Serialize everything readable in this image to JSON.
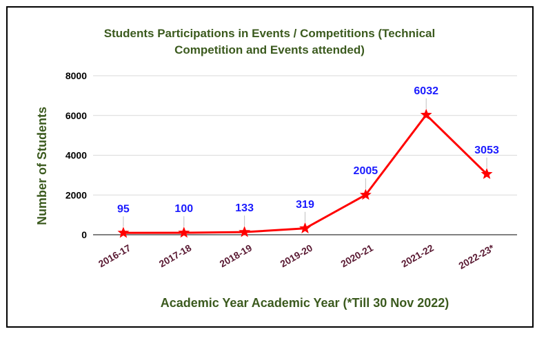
{
  "colors": {
    "title": "#3b5a1e",
    "axis_label": "#3b5a1e",
    "x_tick": "#5a1a33",
    "series": "#ff0000",
    "data_label": "#1a1aff",
    "grid": "#d9d9d9",
    "frame": "#000000"
  },
  "chart_data": {
    "type": "line",
    "title_lines": [
      "Students Participations in Events / Competitions (Technical",
      "Competition and Events attended)"
    ],
    "xlabel": "Academic Year Academic Year (*Till 30 Nov 2022)",
    "ylabel": "Number of Students",
    "categories": [
      "2016-17",
      "2017-18",
      "2018-19",
      "2019-20",
      "2020-21",
      "2021-22",
      "2022-23*"
    ],
    "series": [
      {
        "values": [
          95,
          100,
          133,
          319,
          2005,
          6032,
          3053
        ],
        "marker": "star"
      }
    ],
    "data_labels": [
      "95",
      "100",
      "133",
      "319",
      "2005",
      "6032",
      "3053"
    ],
    "ylim": [
      0,
      8000
    ],
    "yticks": [
      0,
      2000,
      4000,
      6000,
      8000
    ],
    "grid": true,
    "legend": "none"
  }
}
